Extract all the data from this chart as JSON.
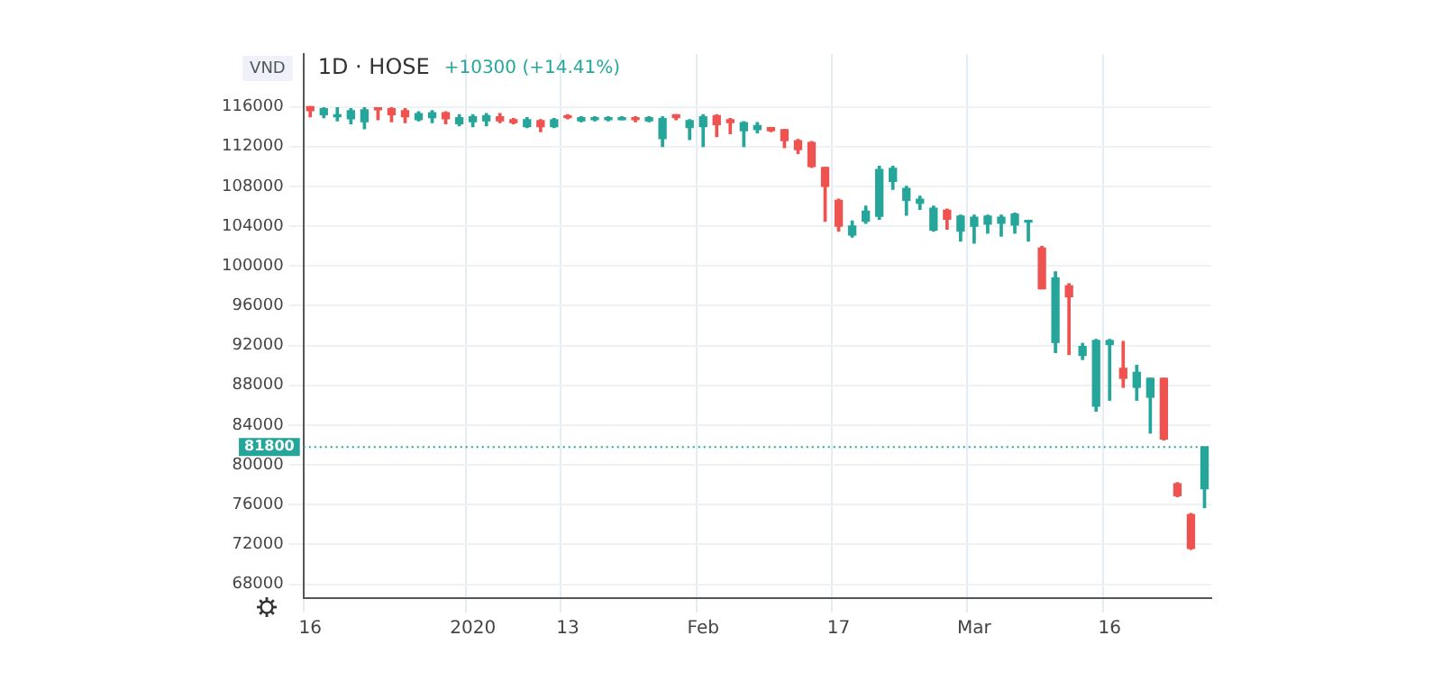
{
  "chart_data": {
    "type": "candlestick",
    "title": "1D · HOSE",
    "subtitle": "+10300 (+14.41%)",
    "ylabel": "VND",
    "categories": [
      "16",
      null,
      null,
      null,
      null,
      null,
      null,
      null,
      null,
      null,
      null,
      null,
      "2020",
      null,
      null,
      null,
      null,
      null,
      null,
      "13",
      null,
      null,
      null,
      null,
      null,
      null,
      null,
      null,
      null,
      "Feb",
      null,
      null,
      null,
      null,
      null,
      null,
      null,
      null,
      null,
      "17",
      null,
      null,
      null,
      null,
      null,
      null,
      null,
      null,
      null,
      "Mar",
      null,
      null,
      null,
      null,
      null,
      null,
      null,
      null,
      null,
      "16",
      null,
      null,
      null,
      null,
      null,
      null,
      null
    ],
    "ohlc": [
      [
        116000,
        116000,
        115000,
        115600
      ],
      [
        115200,
        115900,
        114900,
        115800
      ],
      [
        115000,
        115900,
        114600,
        115200
      ],
      [
        114800,
        115800,
        114300,
        115600
      ],
      [
        114500,
        115900,
        113800,
        115700
      ],
      [
        115900,
        115900,
        114700,
        115700
      ],
      [
        115800,
        115900,
        114500,
        115200
      ],
      [
        115600,
        115800,
        114400,
        115000
      ],
      [
        114700,
        115500,
        114600,
        115300
      ],
      [
        114900,
        115600,
        114400,
        115400
      ],
      [
        115400,
        115500,
        114300,
        114800
      ],
      [
        114300,
        115200,
        114100,
        114900
      ],
      [
        114500,
        115200,
        114000,
        115000
      ],
      [
        114600,
        115300,
        114100,
        115100
      ],
      [
        115000,
        115300,
        114400,
        114600
      ],
      [
        114700,
        114800,
        114300,
        114400
      ],
      [
        114000,
        114900,
        113900,
        114700
      ],
      [
        114600,
        114700,
        113500,
        114000
      ],
      [
        114000,
        114800,
        113900,
        114700
      ],
      [
        115100,
        115200,
        114800,
        114900
      ],
      [
        114600,
        115000,
        114500,
        114900
      ],
      [
        114700,
        115000,
        114600,
        114900
      ],
      [
        114700,
        115000,
        114600,
        114900
      ],
      [
        114700,
        115000,
        114700,
        114900
      ],
      [
        114900,
        115000,
        114500,
        114700
      ],
      [
        114600,
        115000,
        114500,
        114900
      ],
      [
        112800,
        115000,
        112000,
        114800
      ],
      [
        115200,
        115200,
        114700,
        114900
      ],
      [
        113900,
        114700,
        112700,
        114600
      ],
      [
        114000,
        115200,
        112000,
        115000
      ],
      [
        115100,
        115200,
        113000,
        114200
      ],
      [
        114700,
        114800,
        113300,
        114400
      ],
      [
        113600,
        114500,
        112000,
        114400
      ],
      [
        113700,
        114400,
        113400,
        114100
      ],
      [
        113900,
        113900,
        113500,
        113600
      ],
      [
        113700,
        113700,
        111900,
        112600
      ],
      [
        112600,
        112700,
        111300,
        111700
      ],
      [
        112400,
        112500,
        109900,
        110000
      ],
      [
        109900,
        109900,
        104500,
        108000
      ],
      [
        106600,
        106700,
        103500,
        104000
      ],
      [
        103100,
        104500,
        102900,
        104000
      ],
      [
        104500,
        106000,
        104300,
        105500
      ],
      [
        105000,
        110000,
        104700,
        109700
      ],
      [
        108500,
        110000,
        107700,
        109800
      ],
      [
        106600,
        108000,
        105100,
        107800
      ],
      [
        106300,
        107000,
        105700,
        106700
      ],
      [
        103600,
        106000,
        103500,
        105800
      ],
      [
        105600,
        105700,
        103700,
        104700
      ],
      [
        103500,
        105100,
        102500,
        105000
      ],
      [
        104000,
        105100,
        102300,
        104900
      ],
      [
        104200,
        105100,
        103300,
        105000
      ],
      [
        104300,
        105100,
        103000,
        104900
      ],
      [
        104100,
        105300,
        103300,
        105200
      ],
      [
        104400,
        104500,
        102500,
        104500
      ],
      [
        101800,
        101950,
        97700,
        97700
      ],
      [
        92300,
        99400,
        91300,
        98800
      ],
      [
        98000,
        98200,
        91100,
        96900
      ],
      [
        91000,
        92200,
        90600,
        91900
      ],
      [
        85900,
        92600,
        85400,
        92500
      ],
      [
        92100,
        92600,
        86500,
        92500
      ],
      [
        89700,
        92400,
        87800,
        88700
      ],
      [
        87800,
        90000,
        86500,
        89300
      ],
      [
        86800,
        88700,
        83200,
        88700
      ],
      [
        88700,
        88700,
        82500,
        82600
      ],
      [
        78100,
        78200,
        76800,
        76900
      ],
      [
        75000,
        75100,
        71500,
        71600
      ],
      [
        77600,
        81800,
        75700,
        81800
      ]
    ],
    "colors": [
      "#ef5350",
      "#26a69a",
      "#26a69a",
      "#26a69a",
      "#26a69a",
      "#ef5350",
      "#ef5350",
      "#ef5350",
      "#26a69a",
      "#26a69a",
      "#ef5350",
      "#26a69a",
      "#26a69a",
      "#26a69a",
      "#ef5350",
      "#ef5350",
      "#26a69a",
      "#ef5350",
      "#26a69a",
      "#ef5350",
      "#26a69a",
      "#26a69a",
      "#26a69a",
      "#26a69a",
      "#ef5350",
      "#26a69a",
      "#26a69a",
      "#ef5350",
      "#26a69a",
      "#26a69a",
      "#ef5350",
      "#ef5350",
      "#26a69a",
      "#26a69a",
      "#ef5350",
      "#ef5350",
      "#ef5350",
      "#ef5350",
      "#ef5350",
      "#ef5350",
      "#26a69a",
      "#26a69a",
      "#26a69a",
      "#26a69a",
      "#26a69a",
      "#26a69a",
      "#26a69a",
      "#ef5350",
      "#26a69a",
      "#26a69a",
      "#26a69a",
      "#26a69a",
      "#26a69a",
      "#26a69a",
      "#ef5350",
      "#26a69a",
      "#ef5350",
      "#26a69a",
      "#26a69a",
      "#26a69a",
      "#ef5350",
      "#26a69a",
      "#26a69a",
      "#ef5350",
      "#ef5350",
      "#ef5350",
      "#26a69a"
    ],
    "ylim": [
      66600,
      121300
    ],
    "yticks": [
      68000,
      72000,
      76000,
      80000,
      84000,
      88000,
      92000,
      96000,
      100000,
      104000,
      108000,
      112000,
      116000
    ],
    "ref_lines": [
      {
        "axis": "y",
        "value": 81800,
        "label": "81800",
        "color": "#26a69a",
        "line_style": "dotted"
      }
    ],
    "grid": true,
    "legend": false
  }
}
